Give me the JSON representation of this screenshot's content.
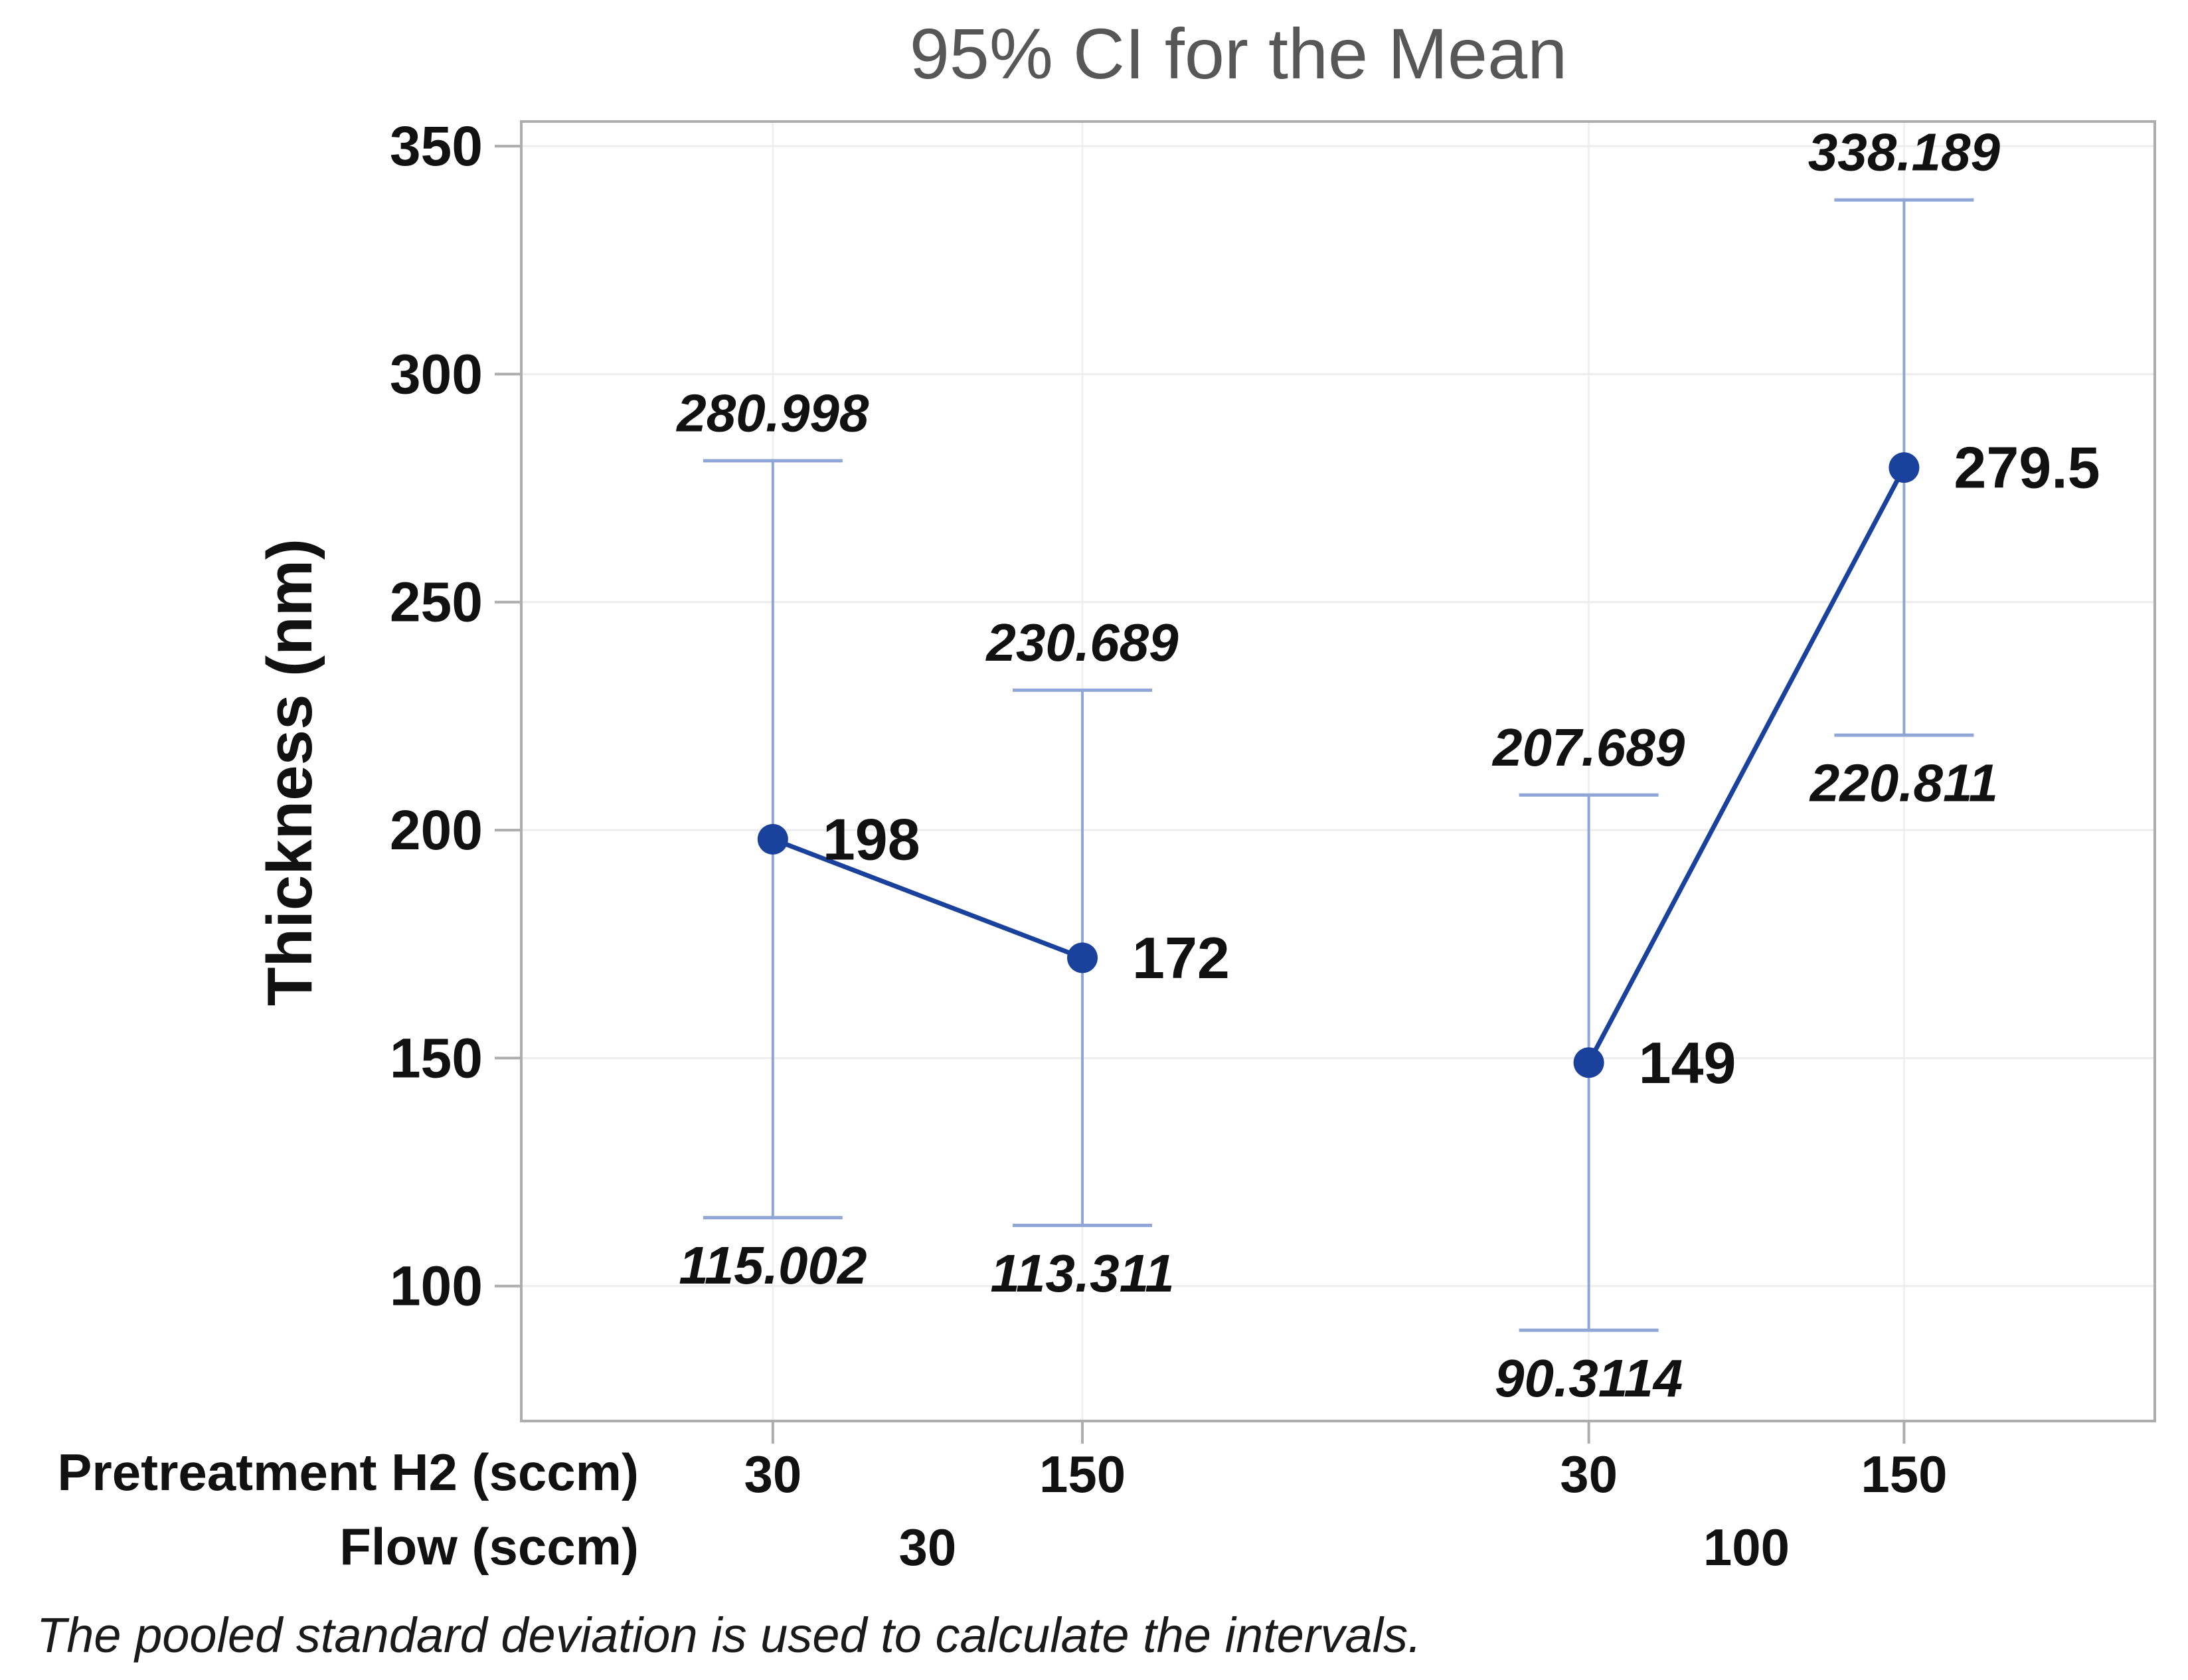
{
  "title": "95% CI for the Mean",
  "footnote": "The pooled standard deviation is used to calculate the intervals.",
  "y_axis": {
    "label": "Thickness (nm)"
  },
  "x_axis": {
    "row1_label": "Pretreatment H2 (sccm)",
    "row2_label": "Flow (sccm)",
    "row1_values": [
      "30",
      "150",
      "30",
      "150"
    ],
    "row2_values": [
      "30",
      "100"
    ]
  },
  "colors": {
    "mean_point": "#1A429C",
    "interval_bar": "#8FA6D6",
    "axis_line": "#ADADAD",
    "gridline_h": "#EDEDED",
    "gridline_v": "#F0F0F0",
    "title_text": "#575757",
    "label_text": "#111111"
  },
  "chart_data": {
    "type": "line",
    "subtype": "interval-plot-with-95pct-CI-error-bars",
    "title": "95% CI for the Mean",
    "xlabel_rows": [
      "Pretreatment H2 (sccm)",
      "Flow (sccm)"
    ],
    "ylabel": "Thickness (nm)",
    "ylim": [
      70.4,
      355.4
    ],
    "y_ticks": [
      100,
      150,
      200,
      250,
      300,
      350
    ],
    "grid": "light horizontal gridlines at y ticks and light vertical gridlines at category positions",
    "legend": "none",
    "groups": [
      {
        "flow": "30",
        "points": [
          {
            "h2": "30",
            "mean": 198,
            "ci_lower": 115.002,
            "ci_upper": 280.998,
            "mean_label": "198",
            "ci_lower_label": "115.002",
            "ci_upper_label": "280.998"
          },
          {
            "h2": "150",
            "mean": 172,
            "ci_lower": 113.311,
            "ci_upper": 230.689,
            "mean_label": "172",
            "ci_lower_label": "113.311",
            "ci_upper_label": "230.689"
          }
        ]
      },
      {
        "flow": "100",
        "points": [
          {
            "h2": "30",
            "mean": 149,
            "ci_lower": 90.3114,
            "ci_upper": 207.689,
            "mean_label": "149",
            "ci_lower_label": "90.3114",
            "ci_upper_label": "207.689"
          },
          {
            "h2": "150",
            "mean": 279.5,
            "ci_lower": 220.811,
            "ci_upper": 338.189,
            "mean_label": "279.5",
            "ci_lower_label": "220.811",
            "ci_upper_label": "338.189"
          }
        ]
      }
    ]
  }
}
